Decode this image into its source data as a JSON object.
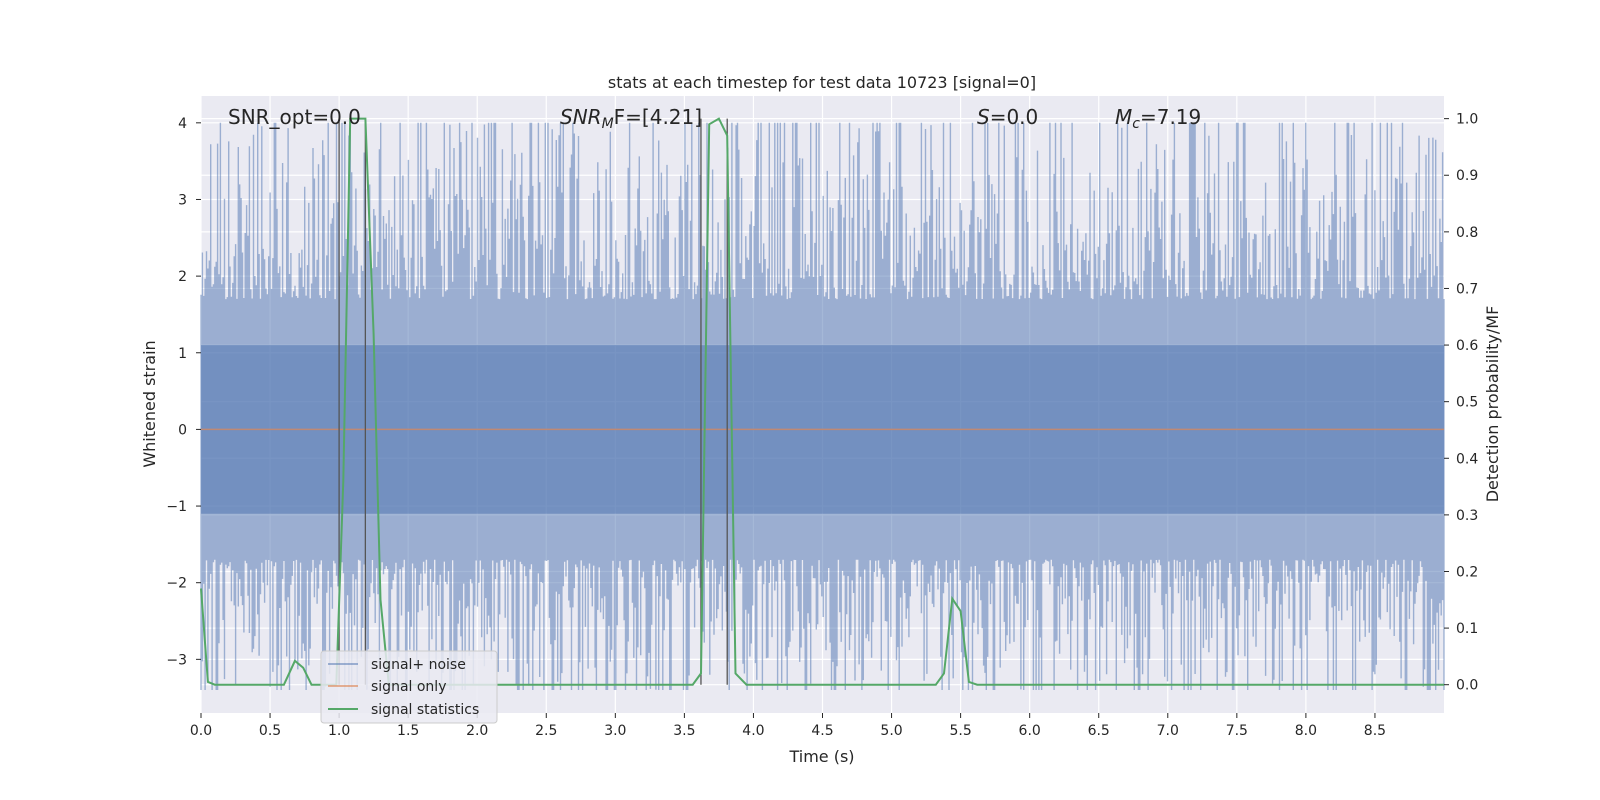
{
  "chart_data": {
    "type": "line",
    "title": "stats at each timestep for test data 10723 [signal=0]",
    "xlabel": "Time (s)",
    "ylabel": "Whitened strain",
    "y2label": "Detection probability/MF",
    "xlim": [
      0.0,
      9.0
    ],
    "ylim": [
      -3.7,
      4.35
    ],
    "y2lim": [
      -0.05,
      1.04
    ],
    "x_ticks": [
      "0.0",
      "0.5",
      "1.0",
      "1.5",
      "2.0",
      "2.5",
      "3.0",
      "3.5",
      "4.0",
      "4.5",
      "5.0",
      "5.5",
      "6.0",
      "6.5",
      "7.0",
      "7.5",
      "8.0",
      "8.5"
    ],
    "y_ticks": [
      "−3",
      "−2",
      "−1",
      "0",
      "1",
      "2",
      "3",
      "4"
    ],
    "y2_ticks": [
      "0.0",
      "0.1",
      "0.2",
      "0.3",
      "0.4",
      "0.5",
      "0.6",
      "0.7",
      "0.8",
      "0.9",
      "1.0"
    ],
    "grid": true,
    "legend_position": "lower-left",
    "annotations": {
      "snr_opt": "SNR_opt=0.0",
      "snr_mf_main": "SNR",
      "snr_mf_sub": "M",
      "snr_mf_rest": "F=[4.21]",
      "s_main": "S",
      "s_rest": "=0.0",
      "mc_main": "M",
      "mc_sub": "c",
      "mc_rest": "=7.19"
    },
    "vertical_lines": [
      1.0,
      1.19,
      3.62,
      3.81
    ],
    "series": [
      {
        "name": "signal+ noise",
        "color": "#4c72b0",
        "description_values": "noise band",
        "band_core": [
          -1.1,
          1.1
        ],
        "peak_max": 4.0,
        "peak_min": -3.4
      },
      {
        "name": "signal only",
        "color": "#dd8452",
        "x": [
          0.0,
          9.0
        ],
        "y": [
          0.0,
          0.0
        ]
      },
      {
        "name": "signal statistics",
        "color": "#55a868",
        "axis": "right",
        "x": [
          0.0,
          0.05,
          0.1,
          0.6,
          0.68,
          0.74,
          0.8,
          0.98,
          1.03,
          1.08,
          1.14,
          1.19,
          1.25,
          1.3,
          1.36,
          3.56,
          3.62,
          3.68,
          3.75,
          3.81,
          3.87,
          3.95,
          5.32,
          5.38,
          5.44,
          5.5,
          5.56,
          5.62,
          9.0
        ],
        "y": [
          0.17,
          0.005,
          0.0,
          0.0,
          0.042,
          0.03,
          0.0,
          0.0,
          0.36,
          1.0,
          1.0,
          1.0,
          0.62,
          0.15,
          0.0,
          0.0,
          0.02,
          0.99,
          1.0,
          0.97,
          0.02,
          0.0,
          0.0,
          0.02,
          0.152,
          0.13,
          0.005,
          0.0,
          0.0
        ]
      }
    ]
  }
}
